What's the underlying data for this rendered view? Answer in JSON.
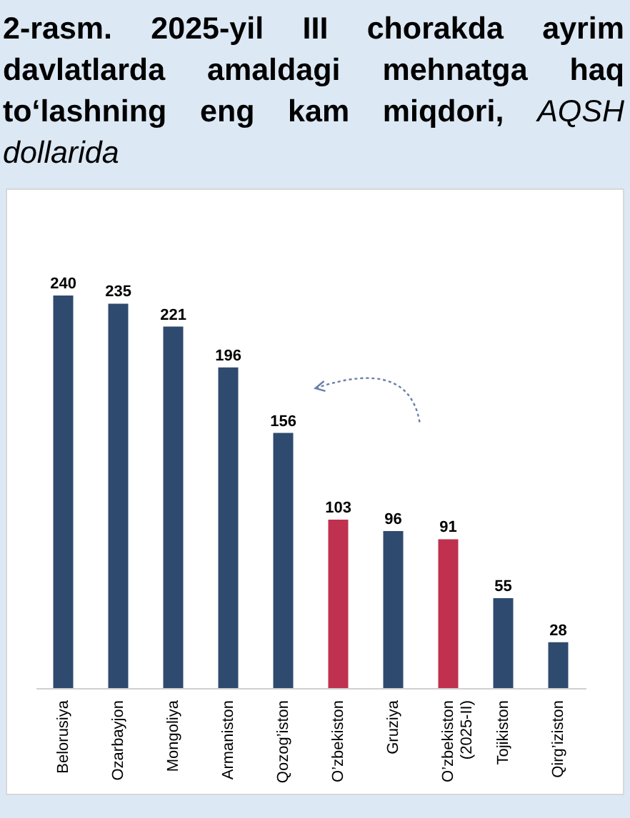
{
  "chart_data": {
    "type": "bar",
    "title": "2-rasm. 2025-yil III chorakda ayrim davlatlarda amaldagi mehnatga haq to‘lashning eng kam miqdori,",
    "subtitle": "AQSH dollarida",
    "categories": [
      "Belorusiya",
      "Ozarbayjon",
      "Mongoliya",
      "Armaniston",
      "Qozog’iston",
      "O’zbekiston",
      "Gruziya",
      "O’zbekiston (2025-II)",
      "Tojikiston",
      "Qirg’iziston"
    ],
    "values": [
      240,
      235,
      221,
      196,
      156,
      103,
      96,
      91,
      55,
      28
    ],
    "colors": [
      "#2e4a6f",
      "#2e4a6f",
      "#2e4a6f",
      "#2e4a6f",
      "#2e4a6f",
      "#c0304f",
      "#2e4a6f",
      "#c0304f",
      "#2e4a6f",
      "#2e4a6f"
    ],
    "data_labels": true
  }
}
